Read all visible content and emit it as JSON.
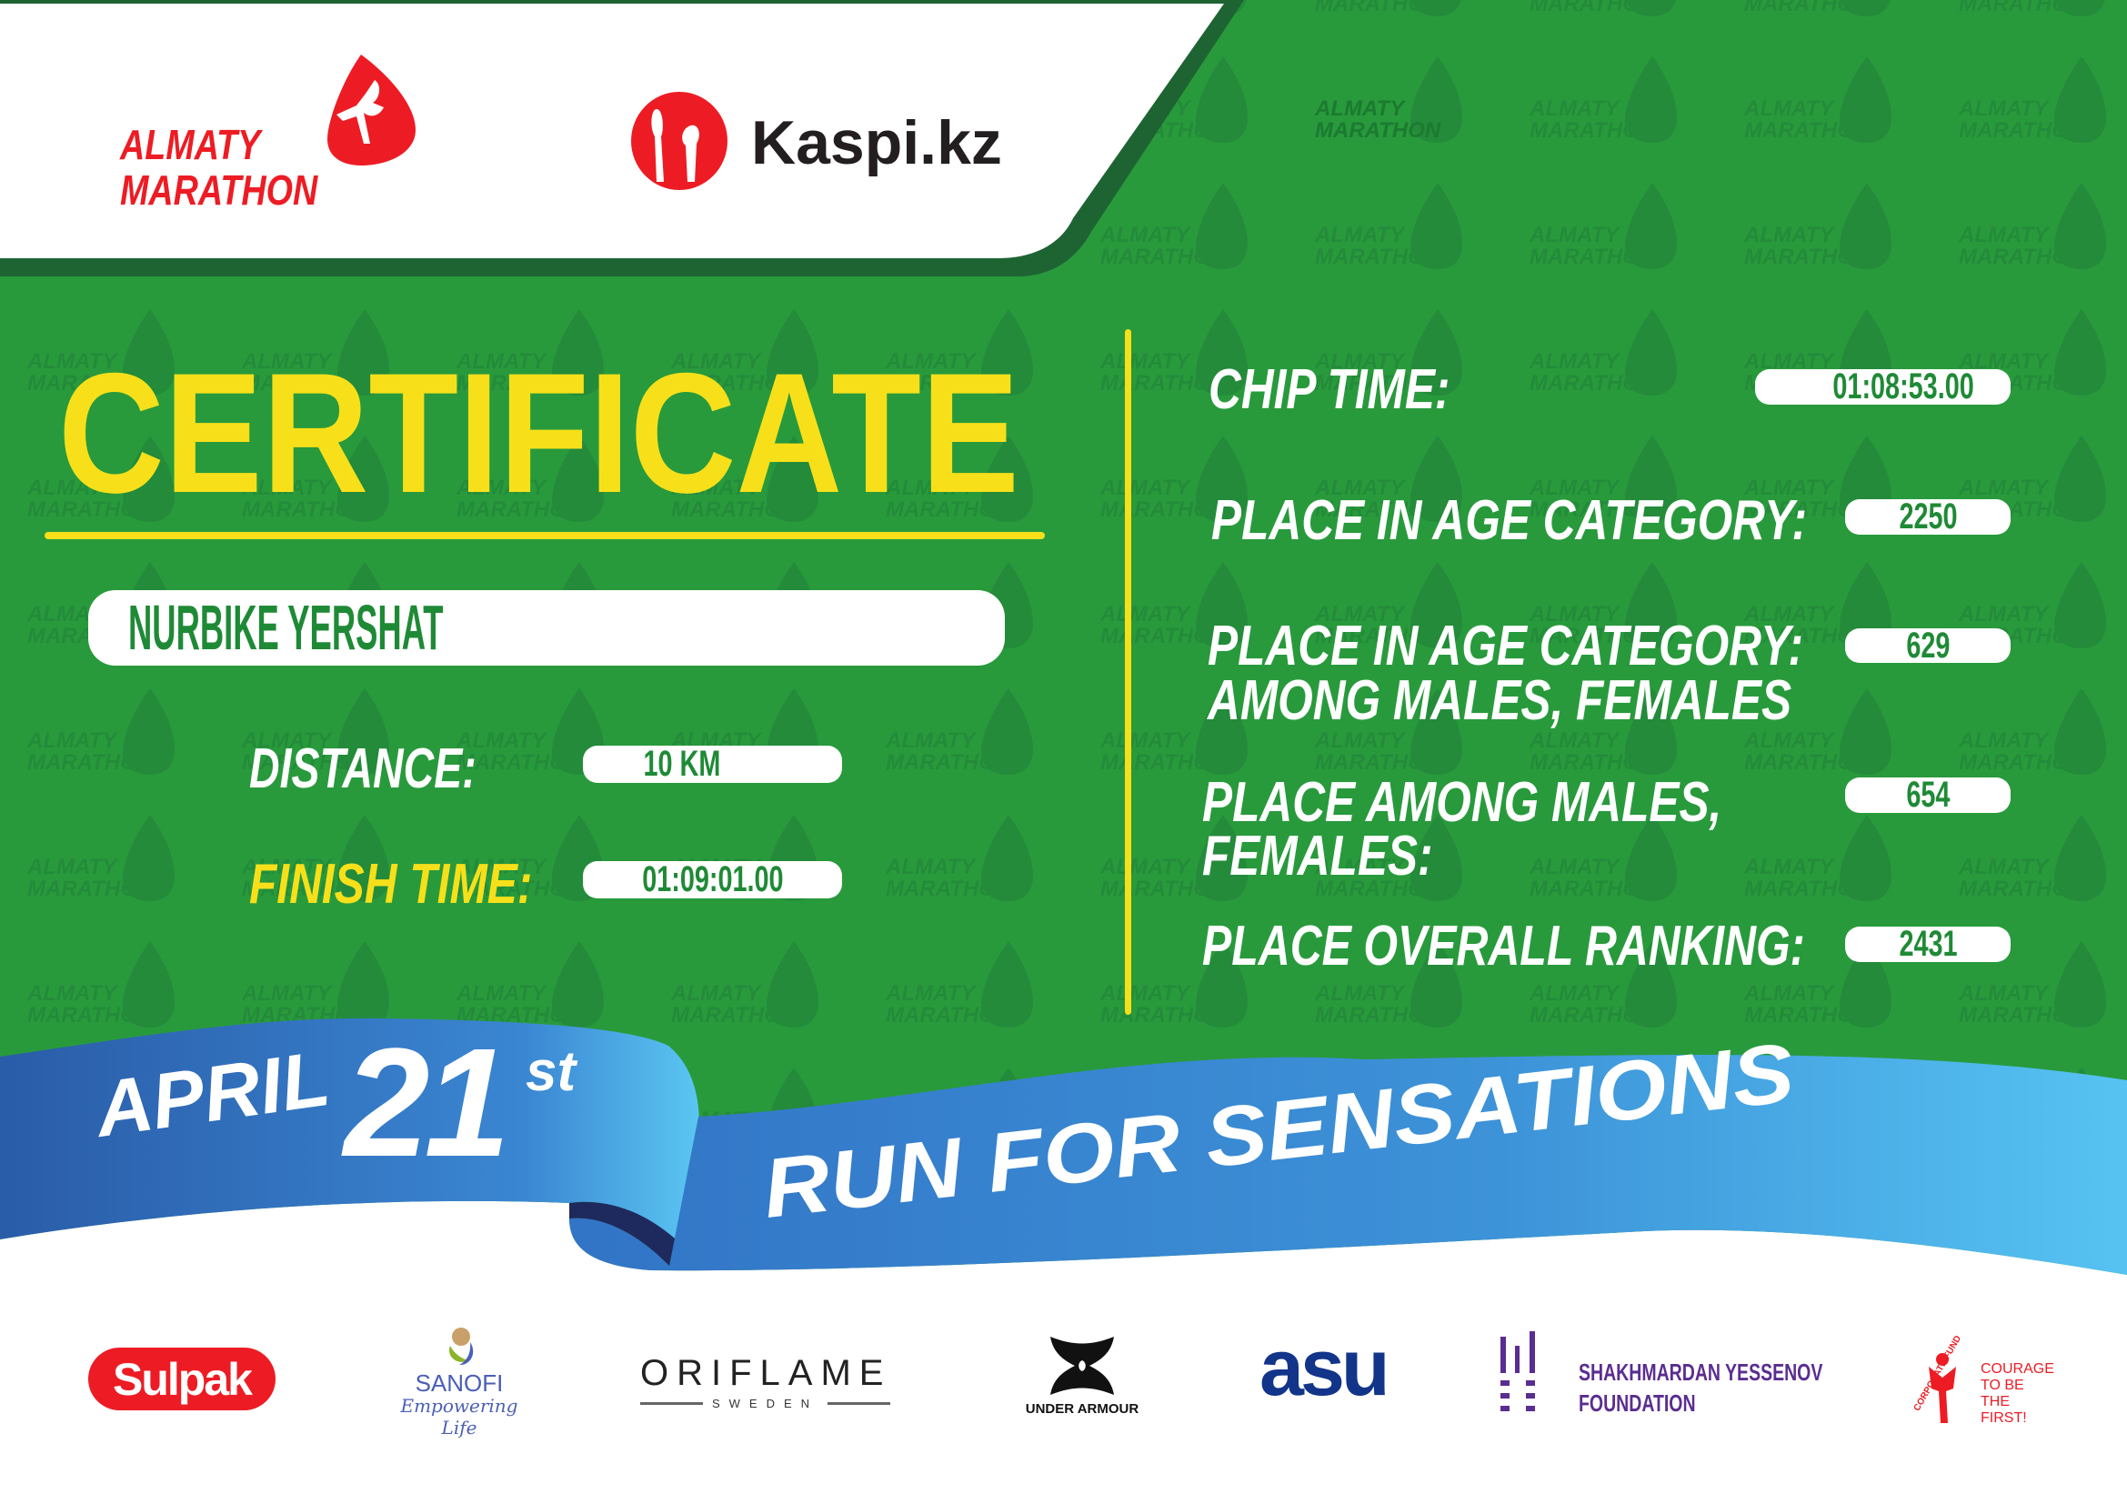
{
  "colors": {
    "green": "#289a3c",
    "dark_green": "#1e6433",
    "yellow": "#f7e01a",
    "red": "#ed1c24",
    "ribbon_dark": "#2a5ca8",
    "ribbon_light": "#5bc6f2",
    "value_text": "#1f8a36"
  },
  "header": {
    "organizer_logo": {
      "line1": "ALMATY",
      "line2": "MARATHON",
      "icon": "runner-drop-icon"
    },
    "sponsor_logo": {
      "text": "Kaspi.kz",
      "icon": "kaspi-people-icon"
    }
  },
  "watermark": {
    "line1": "ALMATY",
    "line2": "MARATHON"
  },
  "certificate": {
    "title": "CERTIFICATE",
    "participant_name": "NURBIKE YERSHAT",
    "distance": {
      "label": "DISTANCE:",
      "value": "10 KM"
    },
    "finish_time": {
      "label": "FINISH TIME:",
      "value": "01:09:01.00"
    },
    "chip_time": {
      "label": "CHIP TIME:",
      "value": "01:08:53.00"
    },
    "place_age_category": {
      "label": "PLACE IN AGE CATEGORY:",
      "value": "2250"
    },
    "place_age_category_gender": {
      "label_line1": "PLACE IN AGE CATEGORY:",
      "label_line2": "AMONG MALES, FEMALES",
      "value": "629"
    },
    "place_gender": {
      "label_line1": "PLACE AMONG MALES,",
      "label_line2": "FEMALES:",
      "value": "654"
    },
    "place_overall": {
      "label": "PLACE OVERALL RANKING:",
      "value": "2431"
    }
  },
  "ribbon": {
    "month": "APRIL",
    "day": "21",
    "suffix": "st",
    "slogan": "RUN FOR SENSATIONS"
  },
  "sponsors": {
    "sulpak": "Sulpak",
    "sanofi": {
      "name": "SANOFI",
      "tagline": "Empowering Life"
    },
    "oriflame": {
      "name": "ORIFLAME",
      "sub": "SWEDEN"
    },
    "under_armour": "UNDER ARMOUR",
    "asu": "asu",
    "yessenov": {
      "line1": "SHAKHMARDAN YESSENOV",
      "line2": "FOUNDATION"
    },
    "courage": {
      "arc": "CORPORATE FUND",
      "line1": "COURAGE",
      "line2": "TO BE",
      "line3": "THE FIRST!"
    }
  }
}
